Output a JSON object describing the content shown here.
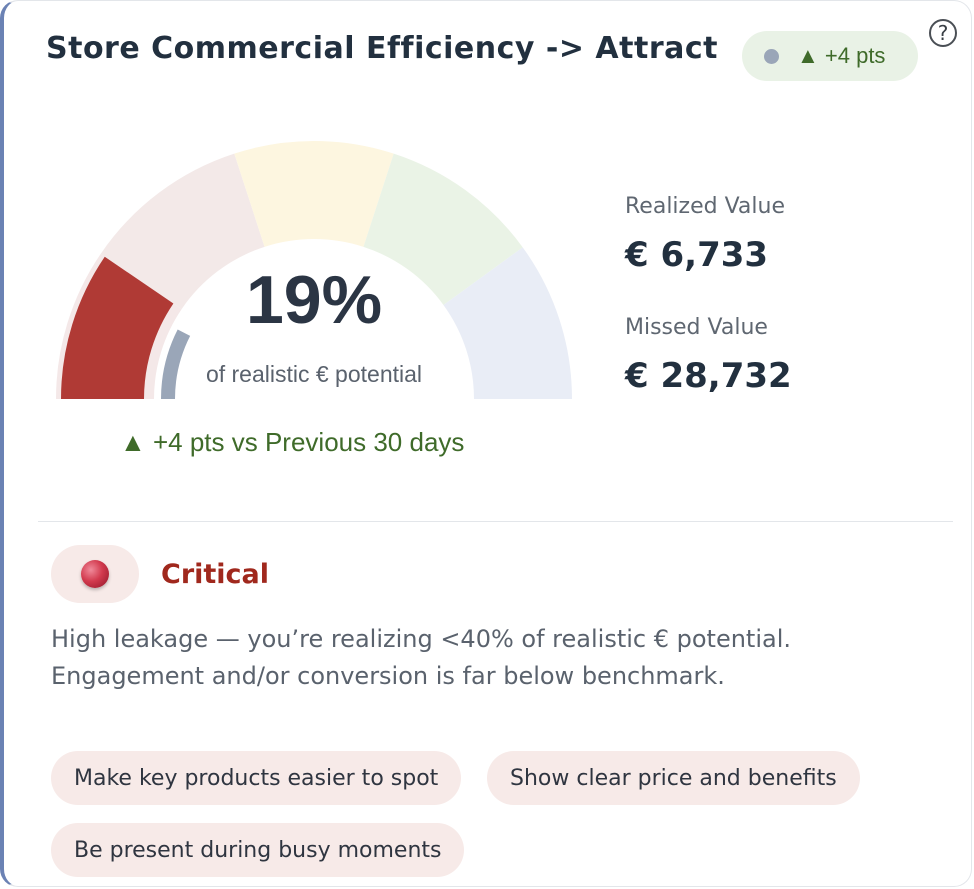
{
  "card": {
    "title": "Store Commercial Efficiency -> Attract",
    "badge": {
      "text": "▲ +4 pts"
    },
    "help_label": "?"
  },
  "gauge": {
    "value_percent": 19,
    "previous_percent": 15,
    "value_label": "19%",
    "subtitle": "of realistic € potential",
    "trend": "▲ +4 pts vs Previous 30 days",
    "colors": {
      "zones": [
        "#f4e8e8",
        "#f3e9e8",
        "#fdf6e0",
        "#eaf3e6",
        "#e9edf6"
      ],
      "value_arc": "#b03a35",
      "previous_arc": "#9aa6b8"
    }
  },
  "stats": {
    "realized_label": "Realized Value",
    "realized_value": "€ 6,733",
    "missed_label": "Missed Value",
    "missed_value": "€ 28,732"
  },
  "status": {
    "label": "Critical",
    "description_line1": "High leakage — you’re realizing <40% of realistic € potential.",
    "description_line2": "Engagement and/or conversion is far below benchmark.",
    "color": "#a0281d"
  },
  "actions": [
    "Make key products easier to spot",
    "Show clear price and benefits",
    "Be present during busy moments"
  ]
}
